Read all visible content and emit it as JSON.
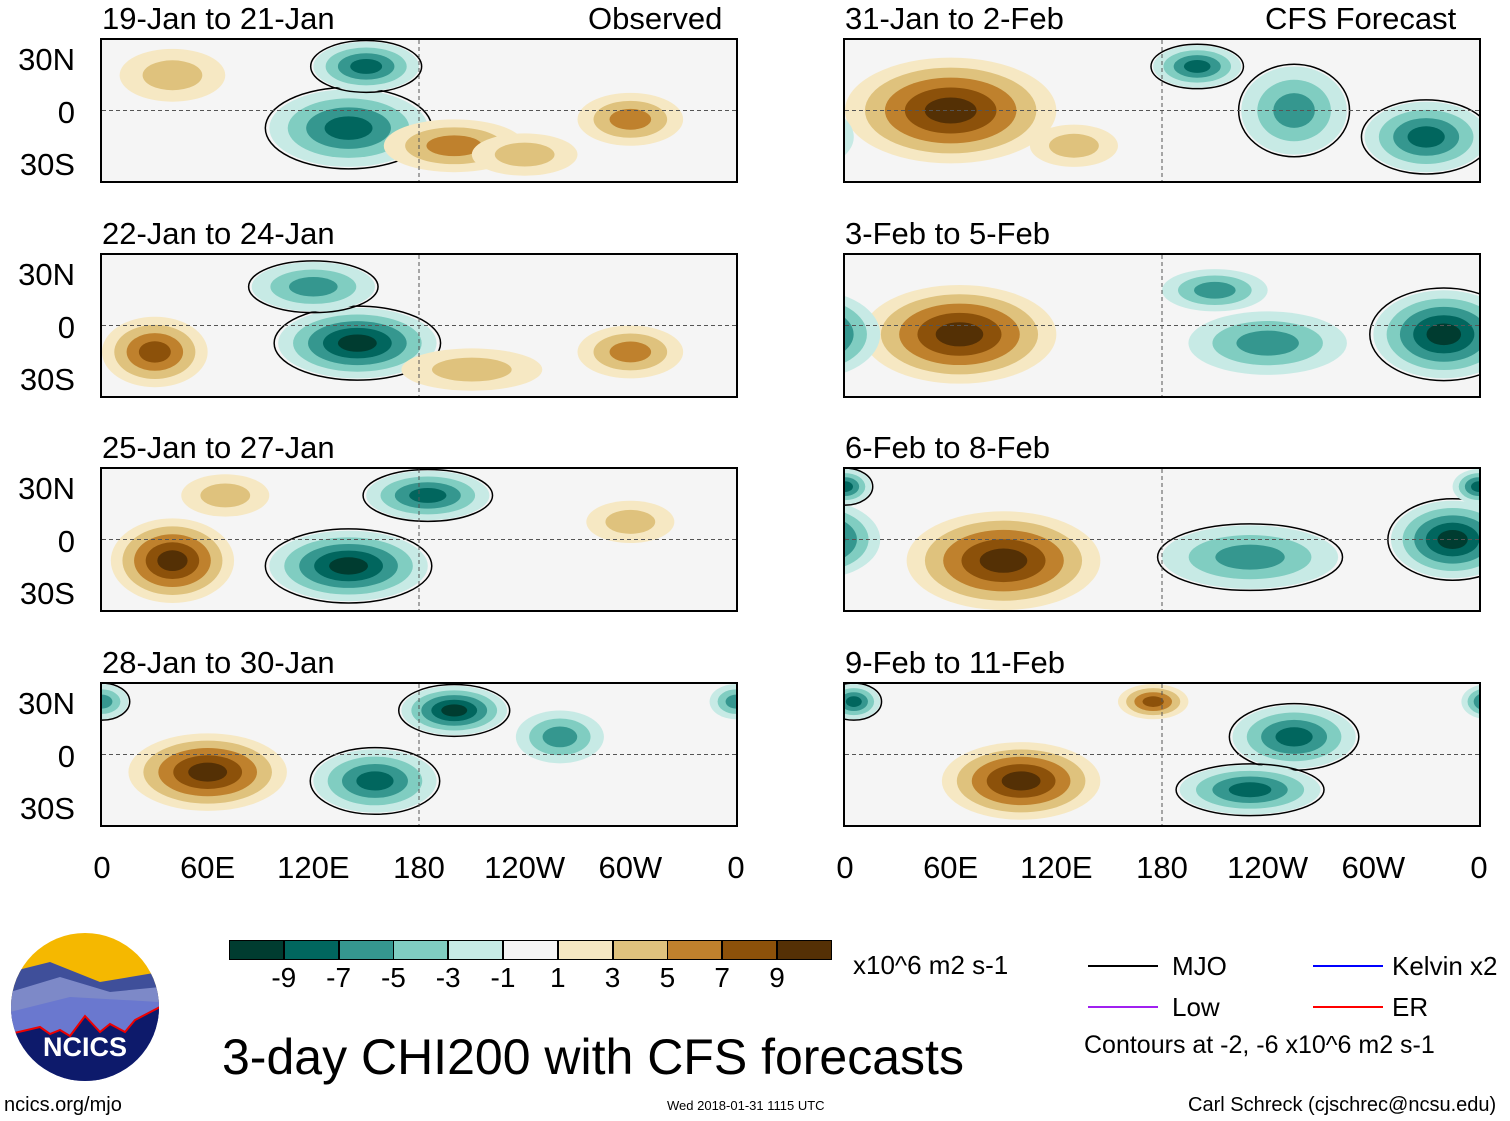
{
  "header": {
    "left_label": "Observed",
    "right_label": "CFS Forecast"
  },
  "chart_data": {
    "type": "heatmap",
    "title": "3-day CHI200 with CFS forecasts",
    "units": "x10^6 m2 s-1",
    "lon_range": [
      0,
      360
    ],
    "lat_range": [
      -40,
      40
    ],
    "ytick_labels": [
      "30N",
      "0",
      "30S"
    ],
    "xtick_labels": [
      "0",
      "60E",
      "120E",
      "180",
      "120W",
      "60W",
      "0"
    ],
    "levels": [
      -9,
      -7,
      -5,
      -3,
      -1,
      1,
      3,
      5,
      7,
      9
    ],
    "colors": [
      "#003c30",
      "#01665e",
      "#35978f",
      "#80cdc1",
      "#c7eae5",
      "#f5f5f5",
      "#f6e8c3",
      "#dfc27d",
      "#bf812d",
      "#8c510a",
      "#543005"
    ],
    "panels": [
      {
        "title": "19-Jan to 21-Jan",
        "column": "Observed",
        "anomalies": [
          [
            140,
            -10,
            45,
            22,
            -8
          ],
          [
            150,
            25,
            30,
            14,
            -7
          ],
          [
            200,
            -20,
            40,
            15,
            5
          ],
          [
            300,
            -5,
            30,
            15,
            5
          ],
          [
            40,
            20,
            30,
            15,
            4
          ],
          [
            240,
            -25,
            30,
            12,
            4
          ]
        ]
      },
      {
        "title": "22-Jan to 24-Jan",
        "column": "Observed",
        "anomalies": [
          [
            145,
            -10,
            45,
            20,
            -9
          ],
          [
            120,
            22,
            35,
            14,
            -6
          ],
          [
            30,
            -15,
            30,
            20,
            7
          ],
          [
            210,
            -25,
            40,
            12,
            4
          ],
          [
            300,
            -15,
            30,
            15,
            5
          ]
        ]
      },
      {
        "title": "25-Jan to 27-Jan",
        "column": "Observed",
        "anomalies": [
          [
            40,
            -12,
            35,
            24,
            9
          ],
          [
            140,
            -15,
            45,
            20,
            -9
          ],
          [
            185,
            25,
            35,
            14,
            -8
          ],
          [
            70,
            25,
            25,
            12,
            4
          ],
          [
            300,
            10,
            25,
            12,
            3
          ]
        ]
      },
      {
        "title": "28-Jan to 30-Jan",
        "column": "Observed",
        "anomalies": [
          [
            60,
            -10,
            45,
            22,
            9
          ],
          [
            155,
            -15,
            35,
            18,
            -7
          ],
          [
            200,
            25,
            30,
            14,
            -9
          ],
          [
            260,
            10,
            25,
            15,
            -5
          ],
          [
            0,
            30,
            15,
            10,
            -6
          ]
        ]
      },
      {
        "title": "31-Jan to 2-Feb",
        "column": "CFS Forecast",
        "anomalies": [
          [
            60,
            0,
            60,
            30,
            9
          ],
          [
            200,
            25,
            25,
            12,
            -7
          ],
          [
            255,
            0,
            30,
            25,
            -6
          ],
          [
            330,
            -15,
            35,
            20,
            -7
          ],
          [
            130,
            -20,
            25,
            12,
            3
          ]
        ]
      },
      {
        "title": "3-Feb to 5-Feb",
        "column": "CFS Forecast",
        "anomalies": [
          [
            65,
            -5,
            55,
            28,
            10
          ],
          [
            340,
            -5,
            40,
            25,
            -9
          ],
          [
            240,
            -10,
            45,
            18,
            -5
          ],
          [
            210,
            20,
            30,
            12,
            -5
          ]
        ]
      },
      {
        "title": "6-Feb to 8-Feb",
        "column": "CFS Forecast",
        "anomalies": [
          [
            90,
            -12,
            55,
            28,
            10
          ],
          [
            345,
            0,
            35,
            22,
            -9
          ],
          [
            230,
            -10,
            50,
            18,
            -6
          ],
          [
            0,
            30,
            15,
            10,
            -7
          ]
        ]
      },
      {
        "title": "9-Feb to 11-Feb",
        "column": "CFS Forecast",
        "anomalies": [
          [
            100,
            -15,
            45,
            22,
            9
          ],
          [
            175,
            30,
            20,
            10,
            7
          ],
          [
            255,
            10,
            35,
            18,
            -8
          ],
          [
            230,
            -20,
            40,
            14,
            -8
          ],
          [
            5,
            30,
            15,
            10,
            -8
          ]
        ]
      }
    ]
  },
  "legend": {
    "mjo": "MJO",
    "kelvin": "Kelvin x2",
    "low": "Low",
    "er": "ER",
    "contours_note": "Contours at -2, -6 x10^6 m2 s-1",
    "line_colors": {
      "mjo": "#000000",
      "kelvin": "#0000ff",
      "low": "#a020f0",
      "er": "#ff0000"
    }
  },
  "footer": {
    "logo_text": "NCICS",
    "url": "ncics.org/mjo",
    "timestamp": "Wed 2018-01-31 1115 UTC",
    "author": "Carl Schreck (cjschrec@ncsu.edu)"
  }
}
